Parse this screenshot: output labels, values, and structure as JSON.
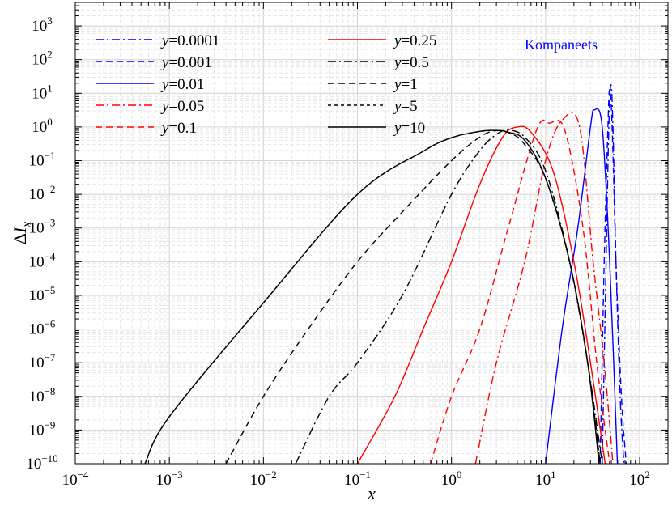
{
  "chart_data": {
    "type": "line",
    "x_scale": "log",
    "y_scale": "log",
    "xlim": [
      0.0001,
      200
    ],
    "ylim": [
      1e-10,
      5000
    ],
    "grid": true,
    "xlabel": "x",
    "ylabel": "ΔI_x",
    "x_tick_values": [
      0.0001,
      0.001,
      0.01,
      0.1,
      1,
      10,
      100
    ],
    "y_tick_values": [
      1e-10,
      1e-09,
      1e-08,
      1e-07,
      1e-06,
      1e-05,
      0.0001,
      0.001,
      0.01,
      0.1,
      1,
      10,
      100,
      1000
    ],
    "annotation": "Kompaneets",
    "legend_placement": "top-left",
    "series": [
      {
        "name": "y=0.0001",
        "y": 0.0001,
        "color": "#0000ff",
        "dash": "dashdot",
        "x": [
          40,
          44,
          47,
          49.5,
          52,
          56,
          62,
          68
        ],
        "values": [
          1e-10,
          0.0001,
          1,
          18,
          1,
          0.0001,
          1e-08,
          1e-10
        ]
      },
      {
        "name": "y=0.001",
        "y": 0.001,
        "color": "#0000ff",
        "dash": "dashed",
        "x": [
          38,
          42,
          46,
          48,
          51,
          56,
          64,
          72
        ],
        "values": [
          1e-10,
          0.0001,
          1,
          13,
          1,
          0.0001,
          1e-08,
          1e-10
        ]
      },
      {
        "name": "y=0.01",
        "y": 0.01,
        "color": "#0000ff",
        "dash": "solid",
        "x": [
          10,
          15,
          22,
          30,
          33,
          40,
          48,
          58
        ],
        "values": [
          1e-10,
          1e-06,
          0.001,
          1,
          3.2,
          1,
          0.0001,
          1e-10
        ]
      },
      {
        "name": "y=0.05",
        "y": 0.05,
        "color": "#ff0000",
        "dash": "dashdot",
        "x": [
          1.8,
          3,
          6,
          10,
          15,
          23,
          32,
          42,
          52
        ],
        "values": [
          1e-10,
          1e-07,
          0.0001,
          0.1,
          1.6,
          1,
          0.0001,
          1e-07,
          1e-10
        ]
      },
      {
        "name": "y=0.1",
        "y": 0.1,
        "color": "#ff0000",
        "dash": "dashed",
        "x": [
          0.6,
          1,
          2,
          4,
          8,
          11,
          16,
          25,
          35,
          48
        ],
        "values": [
          1e-10,
          1e-08,
          1e-06,
          0.001,
          0.8,
          1.3,
          0.8,
          0.001,
          1e-07,
          1e-10
        ]
      },
      {
        "name": "y=0.25",
        "y": 0.25,
        "color": "#ff0000",
        "dash": "solid",
        "x": [
          0.1,
          0.25,
          0.5,
          1,
          2,
          3.5,
          5,
          7,
          12,
          20,
          30,
          43
        ],
        "values": [
          1e-10,
          1e-08,
          1e-06,
          0.0001,
          0.02,
          0.5,
          1,
          0.7,
          0.05,
          0.0001,
          1e-07,
          1e-10
        ]
      },
      {
        "name": "y=0.5",
        "y": 0.5,
        "color": "#000000",
        "dash": "dashdot",
        "x": [
          0.022,
          0.05,
          0.1,
          0.3,
          1,
          2,
          3,
          4,
          6,
          10,
          18,
          28,
          40
        ],
        "values": [
          1e-10,
          1e-08,
          1e-07,
          1e-05,
          0.01,
          0.2,
          0.6,
          0.8,
          0.5,
          0.05,
          0.0001,
          1e-07,
          1e-10
        ]
      },
      {
        "name": "y=1",
        "y": 1,
        "color": "#000000",
        "dash": "dashed",
        "x": [
          0.004,
          0.01,
          0.03,
          0.1,
          0.3,
          1,
          2,
          3,
          4.5,
          6,
          10,
          18,
          28,
          38
        ],
        "values": [
          1e-10,
          1e-08,
          1e-06,
          0.0001,
          0.003,
          0.1,
          0.5,
          0.78,
          0.6,
          0.3,
          0.03,
          0.0001,
          1e-07,
          1e-10
        ]
      },
      {
        "name": "y=5",
        "y": 5,
        "color": "#000000",
        "dash": "shortdash",
        "x": [
          0.00055,
          0.001,
          0.01,
          0.1,
          0.5,
          1,
          2,
          3,
          4,
          6,
          10,
          18,
          28,
          38
        ],
        "values": [
          1e-10,
          2.5e-09,
          6e-06,
          0.01,
          0.19,
          0.48,
          0.74,
          0.79,
          0.7,
          0.4,
          0.03,
          0.0001,
          1e-07,
          1e-10
        ]
      },
      {
        "name": "y=10",
        "y": 10,
        "color": "#000000",
        "dash": "solid",
        "x": [
          0.00055,
          0.001,
          0.01,
          0.1,
          0.5,
          1,
          2,
          3,
          4,
          6,
          10,
          18,
          28,
          37
        ],
        "values": [
          1e-10,
          2.5e-09,
          6e-06,
          0.01,
          0.19,
          0.48,
          0.74,
          0.79,
          0.7,
          0.4,
          0.03,
          0.0001,
          1e-07,
          1e-10
        ]
      }
    ]
  }
}
